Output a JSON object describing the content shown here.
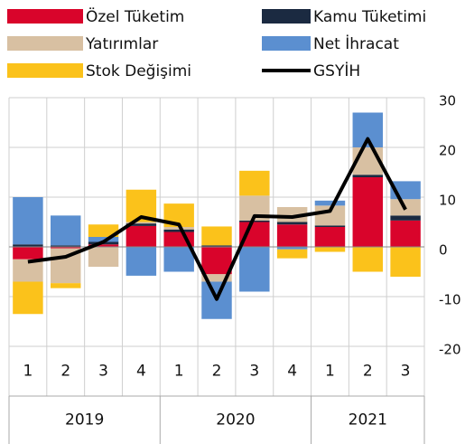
{
  "chart_data": {
    "type": "stacked_bar_line",
    "groups": [
      {
        "label": "2019",
        "quarters": [
          "1",
          "2",
          "3",
          "4"
        ]
      },
      {
        "label": "2020",
        "quarters": [
          "1",
          "2",
          "3",
          "4"
        ]
      },
      {
        "label": "2021",
        "quarters": [
          "1",
          "2",
          "3"
        ]
      }
    ],
    "series": [
      {
        "name": "Özel Tüketim",
        "color": "#d9042b",
        "kind": "bar",
        "values": [
          -2.5,
          -0.3,
          0.5,
          4.2,
          3,
          -5.5,
          5,
          4.5,
          4,
          14,
          5.3
        ]
      },
      {
        "name": "Kamu Tüketimi",
        "color": "#1b2a41",
        "kind": "bar",
        "values": [
          0.5,
          0.3,
          0.5,
          0.5,
          0.5,
          0.3,
          0.3,
          0.5,
          0.3,
          0.5,
          1
        ]
      },
      {
        "name": "Yatırımlar",
        "color": "#d8c0a2",
        "kind": "bar",
        "values": [
          -4.5,
          -7,
          -4,
          0.3,
          0.5,
          -1.5,
          5,
          3,
          4,
          5.5,
          3.3
        ]
      },
      {
        "name": "Net İhracat",
        "color": "#5b8fd0",
        "kind": "bar",
        "values": [
          9.5,
          6,
          1,
          -5.8,
          -5,
          -7.5,
          -9,
          -0.5,
          1,
          7,
          3.6
        ]
      },
      {
        "name": "Stok Değişimi",
        "color": "#fbc21b",
        "kind": "bar",
        "values": [
          -6.5,
          -1,
          2.5,
          6.5,
          4.7,
          3.8,
          5,
          -1.8,
          -1,
          -5,
          -6
        ]
      },
      {
        "name": "GSYİH",
        "color": "#000000",
        "kind": "line",
        "values": [
          -3,
          -2,
          1,
          6,
          4.5,
          -10.5,
          6.2,
          6,
          7.2,
          21.7,
          7.5
        ]
      }
    ],
    "ylim": [
      -20,
      30
    ],
    "yticks": [
      30,
      20,
      10,
      0,
      -10,
      -20
    ],
    "grid": true
  }
}
